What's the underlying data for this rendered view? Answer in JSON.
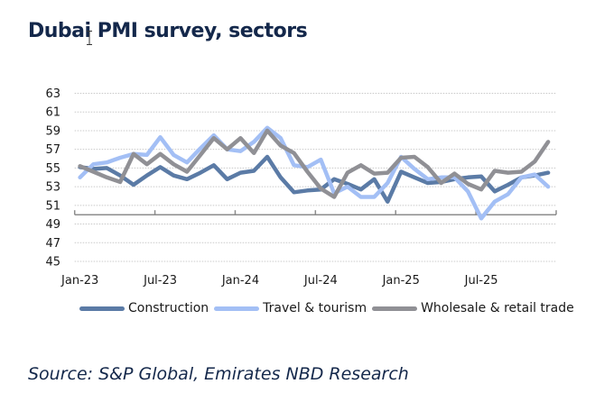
{
  "title": "Dubai PMI survey, sectors",
  "source": "Source: S&P Global, Emirates NBD Research",
  "chart_data": {
    "type": "line",
    "title": "Dubai PMI survey, sectors",
    "xlabel": "",
    "ylabel": "",
    "ylim": [
      45,
      63
    ],
    "yticks": [
      45,
      47,
      49,
      51,
      53,
      55,
      57,
      59,
      61,
      63
    ],
    "x_axis_crosses_at": 50,
    "grid": true,
    "legend_position": "bottom",
    "x": [
      "Jan-23",
      "Feb-23",
      "Mar-23",
      "Apr-23",
      "May-23",
      "Jun-23",
      "Jul-23",
      "Aug-23",
      "Sep-23",
      "Oct-23",
      "Nov-23",
      "Dec-23",
      "Jan-24",
      "Feb-24",
      "Mar-24",
      "Apr-24",
      "May-24",
      "Jun-24",
      "Jul-24",
      "Aug-24",
      "Sep-24",
      "Oct-24",
      "Nov-24",
      "Dec-24",
      "Jan-25",
      "Feb-25",
      "Mar-25",
      "Apr-25",
      "May-25",
      "Jun-25",
      "Jul-25",
      "Aug-25",
      "Sep-25",
      "Oct-25",
      "Nov-25",
      "Dec-25"
    ],
    "xtick_labels": [
      "Jan-23",
      "Jul-23",
      "Jan-24",
      "Jul-24",
      "Jan-25",
      "Jul-25"
    ],
    "x_axis_end": "Jan-26",
    "series": [
      {
        "name": "Construction",
        "color": "#5b7ba6",
        "values": [
          55.1,
          54.9,
          55.0,
          54.2,
          53.2,
          54.2,
          55.1,
          54.2,
          53.8,
          54.5,
          55.3,
          53.8,
          54.5,
          54.7,
          56.2,
          54.0,
          52.4,
          52.6,
          52.7,
          53.8,
          53.3,
          52.7,
          53.8,
          51.4,
          54.6,
          54.0,
          53.4,
          53.5,
          53.8,
          54.0,
          54.1,
          52.5,
          53.2,
          54.0,
          54.2,
          54.5
        ]
      },
      {
        "name": "Travel & tourism",
        "color": "#a3bff5",
        "values": [
          54.0,
          55.4,
          55.6,
          56.1,
          56.5,
          56.4,
          58.3,
          56.4,
          55.6,
          57.1,
          58.5,
          57.0,
          56.8,
          57.8,
          59.3,
          58.2,
          55.3,
          55.1,
          55.9,
          52.3,
          53.0,
          51.9,
          51.9,
          53.4,
          56.2,
          54.9,
          53.8,
          54.0,
          54.0,
          52.5,
          49.6,
          51.4,
          52.2,
          54.0,
          54.3,
          53.0
        ]
      },
      {
        "name": "Wholesale & retail trade",
        "color": "#909095",
        "values": [
          55.2,
          54.6,
          54.0,
          53.5,
          56.5,
          55.4,
          56.5,
          55.4,
          54.6,
          56.4,
          58.2,
          57.0,
          58.2,
          56.6,
          59.0,
          57.4,
          56.6,
          54.6,
          52.8,
          51.9,
          54.5,
          55.3,
          54.4,
          54.5,
          56.1,
          56.2,
          55.1,
          53.4,
          54.4,
          53.3,
          52.7,
          54.7,
          54.5,
          54.6,
          55.7,
          57.8
        ]
      }
    ]
  }
}
